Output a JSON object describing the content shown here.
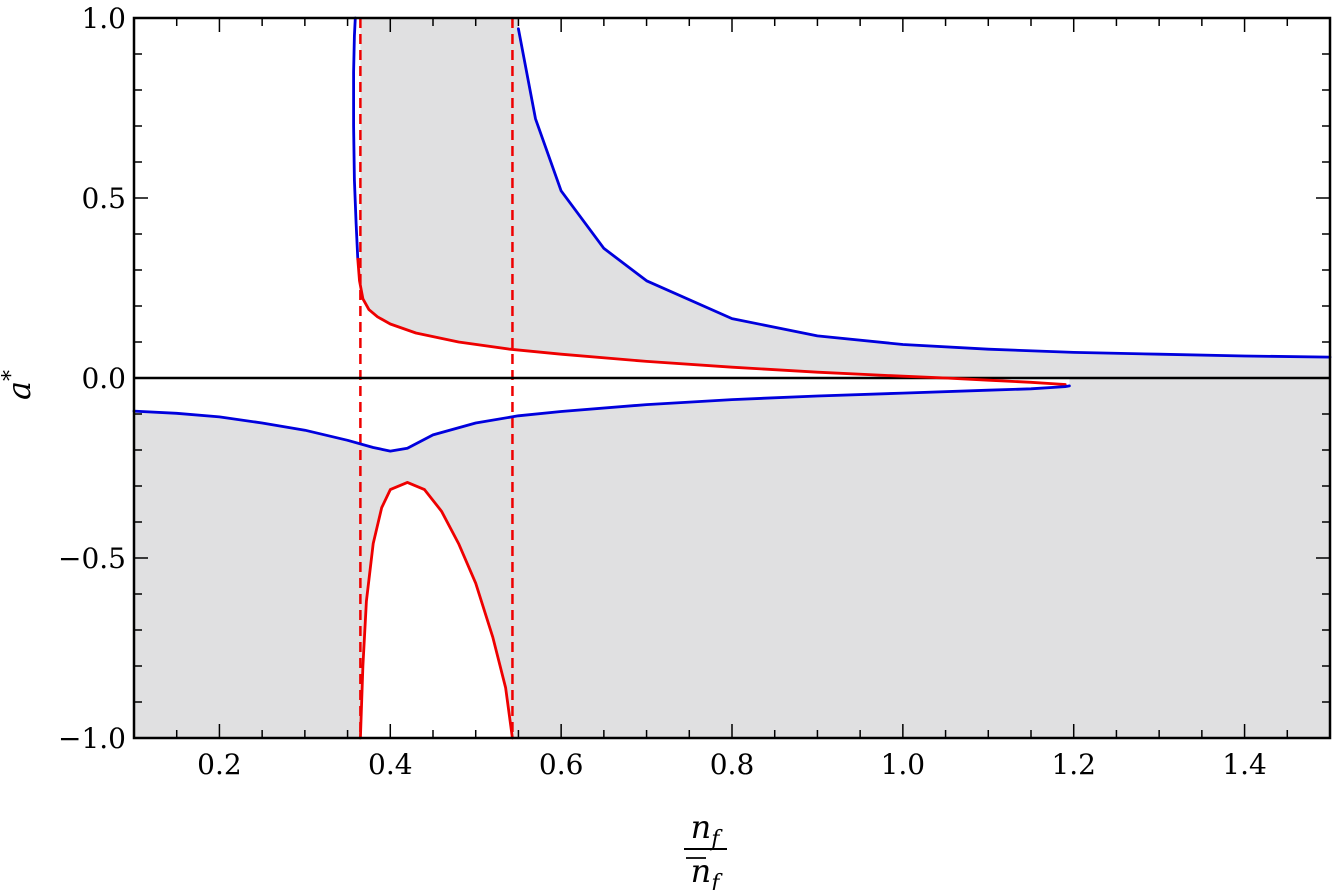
{
  "chart_data": {
    "type": "line",
    "xlabel": {
      "numerator": "n",
      "numerator_sub": "f",
      "denominator": "n",
      "denominator_sub": "f"
    },
    "ylabel": {
      "base": "a",
      "sup": "*"
    },
    "xlim": [
      0.1,
      1.5
    ],
    "ylim": [
      -1.0,
      1.0
    ],
    "x_ticks": [
      0.2,
      0.4,
      0.6,
      0.8,
      1.0,
      1.2,
      1.4
    ],
    "x_tick_labels": [
      "0.2",
      "0.4",
      "0.6",
      "0.8",
      "1.0",
      "1.2",
      "1.4"
    ],
    "y_ticks": [
      -1.0,
      -0.5,
      0.0,
      0.5,
      1.0
    ],
    "y_tick_labels": [
      "−1.0",
      "−0.5",
      "0.0",
      "0.5",
      "1.0"
    ],
    "grid": false,
    "colors": {
      "blue": "#0000dd",
      "red": "#ee0000",
      "shade": "#e0e0e1",
      "axis": "#000000"
    },
    "vertical_dashed_lines": [
      0.365,
      0.543
    ],
    "horizontal_line": 0.0,
    "series": [
      {
        "color": "blue",
        "style": "solid",
        "x": [
          0.359,
          0.358,
          0.357,
          0.357,
          0.358,
          0.36,
          0.362
        ],
        "y": [
          1.0,
          0.95,
          0.85,
          0.7,
          0.55,
          0.43,
          0.33
        ]
      },
      {
        "color": "red",
        "style": "solid",
        "x": [
          0.362,
          0.364,
          0.368,
          0.375,
          0.385,
          0.4,
          0.43,
          0.48,
          0.54,
          0.6,
          0.7,
          0.8,
          0.9,
          1.0,
          1.05,
          1.1,
          1.15,
          1.19
        ],
        "y": [
          0.33,
          0.27,
          0.22,
          0.19,
          0.17,
          0.15,
          0.125,
          0.1,
          0.08,
          0.066,
          0.046,
          0.03,
          0.016,
          0.005,
          0.0,
          -0.006,
          -0.012,
          -0.018
        ]
      },
      {
        "color": "blue",
        "style": "solid",
        "x": [
          0.55,
          0.57,
          0.6,
          0.65,
          0.7,
          0.8,
          0.9,
          1.0,
          1.1,
          1.2,
          1.3,
          1.4,
          1.5
        ],
        "y": [
          0.97,
          0.72,
          0.52,
          0.36,
          0.27,
          0.165,
          0.117,
          0.093,
          0.08,
          0.071,
          0.066,
          0.061,
          0.058
        ]
      },
      {
        "color": "blue",
        "style": "solid",
        "x": [
          0.1,
          0.15,
          0.2,
          0.25,
          0.3,
          0.35,
          0.38,
          0.4,
          0.42,
          0.45,
          0.5,
          0.55,
          0.6,
          0.7,
          0.8,
          0.9,
          1.0,
          1.1,
          1.15,
          1.19,
          1.195
        ],
        "y": [
          -0.092,
          -0.098,
          -0.108,
          -0.125,
          -0.145,
          -0.173,
          -0.193,
          -0.203,
          -0.195,
          -0.158,
          -0.125,
          -0.105,
          -0.093,
          -0.074,
          -0.06,
          -0.05,
          -0.042,
          -0.034,
          -0.03,
          -0.024,
          -0.022
        ]
      },
      {
        "color": "red",
        "style": "solid",
        "x": [
          0.365,
          0.368,
          0.372,
          0.38,
          0.39,
          0.4,
          0.42,
          0.44,
          0.46,
          0.48,
          0.5,
          0.52,
          0.535,
          0.543
        ],
        "y": [
          -1.0,
          -0.8,
          -0.62,
          -0.46,
          -0.36,
          -0.31,
          -0.29,
          -0.31,
          -0.37,
          -0.46,
          -0.57,
          -0.72,
          -0.86,
          -1.0
        ]
      }
    ]
  }
}
